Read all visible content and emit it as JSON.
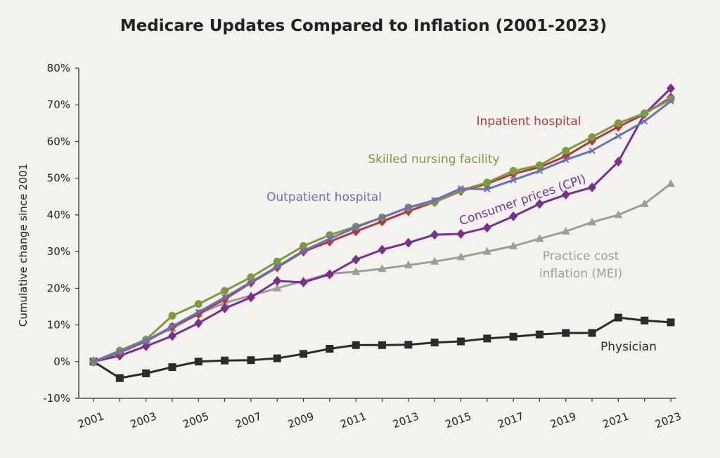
{
  "chart_data": {
    "type": "line",
    "title": "Medicare Updates Compared to Inflation (2001-2023)",
    "xlabel": "",
    "ylabel": "Cumulative change since 2001",
    "ylim": [
      -10,
      80
    ],
    "y_ticks": [
      -10,
      0,
      10,
      20,
      30,
      40,
      50,
      60,
      70,
      80
    ],
    "y_tick_labels": [
      "-10%",
      "0%",
      "10%",
      "20%",
      "30%",
      "40%",
      "50%",
      "60%",
      "70%",
      "80%"
    ],
    "x": [
      2001,
      2002,
      2003,
      2004,
      2005,
      2006,
      2007,
      2008,
      2009,
      2010,
      2011,
      2012,
      2013,
      2014,
      2015,
      2016,
      2017,
      2018,
      2019,
      2020,
      2021,
      2022,
      2023
    ],
    "x_tick_labels": [
      "2001",
      "2003",
      "2005",
      "2007",
      "2009",
      "2011",
      "2013",
      "2015",
      "2017",
      "2019",
      "2021",
      "2023"
    ],
    "grid": false,
    "legend": "inline labels",
    "series": [
      {
        "name": "Practice cost inflation (MEI)",
        "label_lines": [
          "Practice cost",
          "inflation (MEI)"
        ],
        "color": "#9d9d9d",
        "marker": "triangle",
        "values": [
          0,
          3,
          6,
          9,
          13,
          16,
          18,
          20,
          22,
          24,
          24.5,
          25.3,
          26.3,
          27.3,
          28.5,
          30,
          31.5,
          33.5,
          35.5,
          38,
          40,
          43,
          48.5
        ]
      },
      {
        "name": "Physician",
        "label_lines": [
          "Physician"
        ],
        "color": "#2b2b2b",
        "marker": "square",
        "values": [
          0,
          -4.5,
          -3.2,
          -1.5,
          0,
          0.3,
          0.4,
          0.9,
          2.1,
          3.5,
          4.5,
          4.5,
          4.6,
          5.2,
          5.5,
          6.3,
          6.8,
          7.4,
          7.8,
          7.8,
          12,
          11.2,
          10.7
        ]
      },
      {
        "name": "Consumer prices (CPI)",
        "label_lines": [
          "Consumer prices (CPI)"
        ],
        "color": "#7a2f8f",
        "marker": "diamond",
        "values": [
          0,
          1.6,
          4.2,
          7,
          10.5,
          14.5,
          17.5,
          22,
          21.6,
          23.8,
          27.8,
          30.5,
          32.4,
          34.6,
          34.8,
          36.5,
          39.6,
          43,
          45.5,
          47.5,
          54.5,
          67.5,
          74.5
        ]
      },
      {
        "name": "Inpatient hospital",
        "label_lines": [
          "Inpatient hospital"
        ],
        "color": "#b03a3a",
        "marker": "diamond",
        "values": [
          0,
          2.5,
          5.5,
          9.5,
          13,
          17,
          21.5,
          25.7,
          30,
          32.7,
          35.5,
          38.2,
          41,
          43.5,
          46.5,
          48.5,
          51.2,
          53,
          56,
          60.2,
          64,
          67.5,
          72
        ]
      },
      {
        "name": "Skilled nursing facility",
        "label_lines": [
          "Skilled nursing facility"
        ],
        "color": "#7e9a3f",
        "marker": "circle",
        "values": [
          0,
          3,
          6,
          12.5,
          15.7,
          19.3,
          23,
          27.3,
          31.5,
          34.5,
          36.8,
          39.3,
          42,
          43.5,
          46.7,
          48.8,
          52,
          53.5,
          57.5,
          61.2,
          65,
          67.7,
          71.5
        ]
      },
      {
        "name": "Outpatient hospital",
        "label_lines": [
          "Outpatient hospital"
        ],
        "color": "#6673b8",
        "marker": "x",
        "values": [
          0,
          2.7,
          5.7,
          9.6,
          13.5,
          17.5,
          21.7,
          25.9,
          30.2,
          33.5,
          36.6,
          39.3,
          42,
          44,
          47.2,
          47,
          49.5,
          52,
          55,
          57.5,
          61.5,
          65.5,
          71
        ]
      }
    ]
  }
}
